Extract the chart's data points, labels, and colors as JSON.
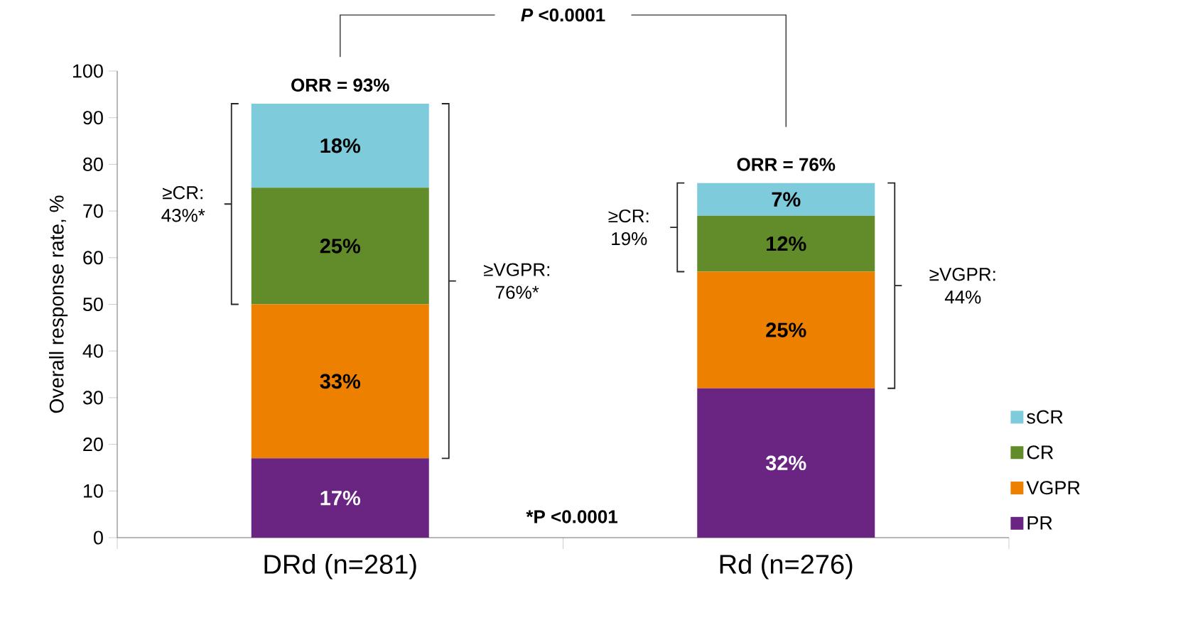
{
  "chart_data": {
    "type": "bar",
    "stacked": true,
    "ylabel": "Overall response rate, %",
    "categories": [
      "DRd (n=281)",
      "Rd (n=276)"
    ],
    "series": [
      {
        "name": "PR",
        "color": "#6a2583",
        "values": [
          17,
          32
        ],
        "value_labels": [
          "17%",
          "32%"
        ]
      },
      {
        "name": "VGPR",
        "color": "#ee8000",
        "values": [
          33,
          25
        ],
        "value_labels": [
          "33%",
          "25%"
        ]
      },
      {
        "name": "CR",
        "color": "#628c2a",
        "values": [
          25,
          12
        ],
        "value_labels": [
          "25%",
          "12%"
        ]
      },
      {
        "name": "sCR",
        "color": "#7ecbdc",
        "values": [
          18,
          7
        ],
        "value_labels": [
          "18%",
          "7%"
        ]
      }
    ],
    "totals": [
      "ORR = 93%",
      "ORR = 76%"
    ],
    "ylim": [
      0,
      100
    ],
    "yticks": [
      0,
      10,
      20,
      30,
      40,
      50,
      60,
      70,
      80,
      90,
      100
    ],
    "legend": "bottom right",
    "annotations": [
      "*P* <0.0001",
      "*P <0.0001",
      "≥CR: 43%*",
      "≥VGPR: 76%*",
      "≥CR: 19%",
      "≥VGPR: 44%"
    ]
  }
}
